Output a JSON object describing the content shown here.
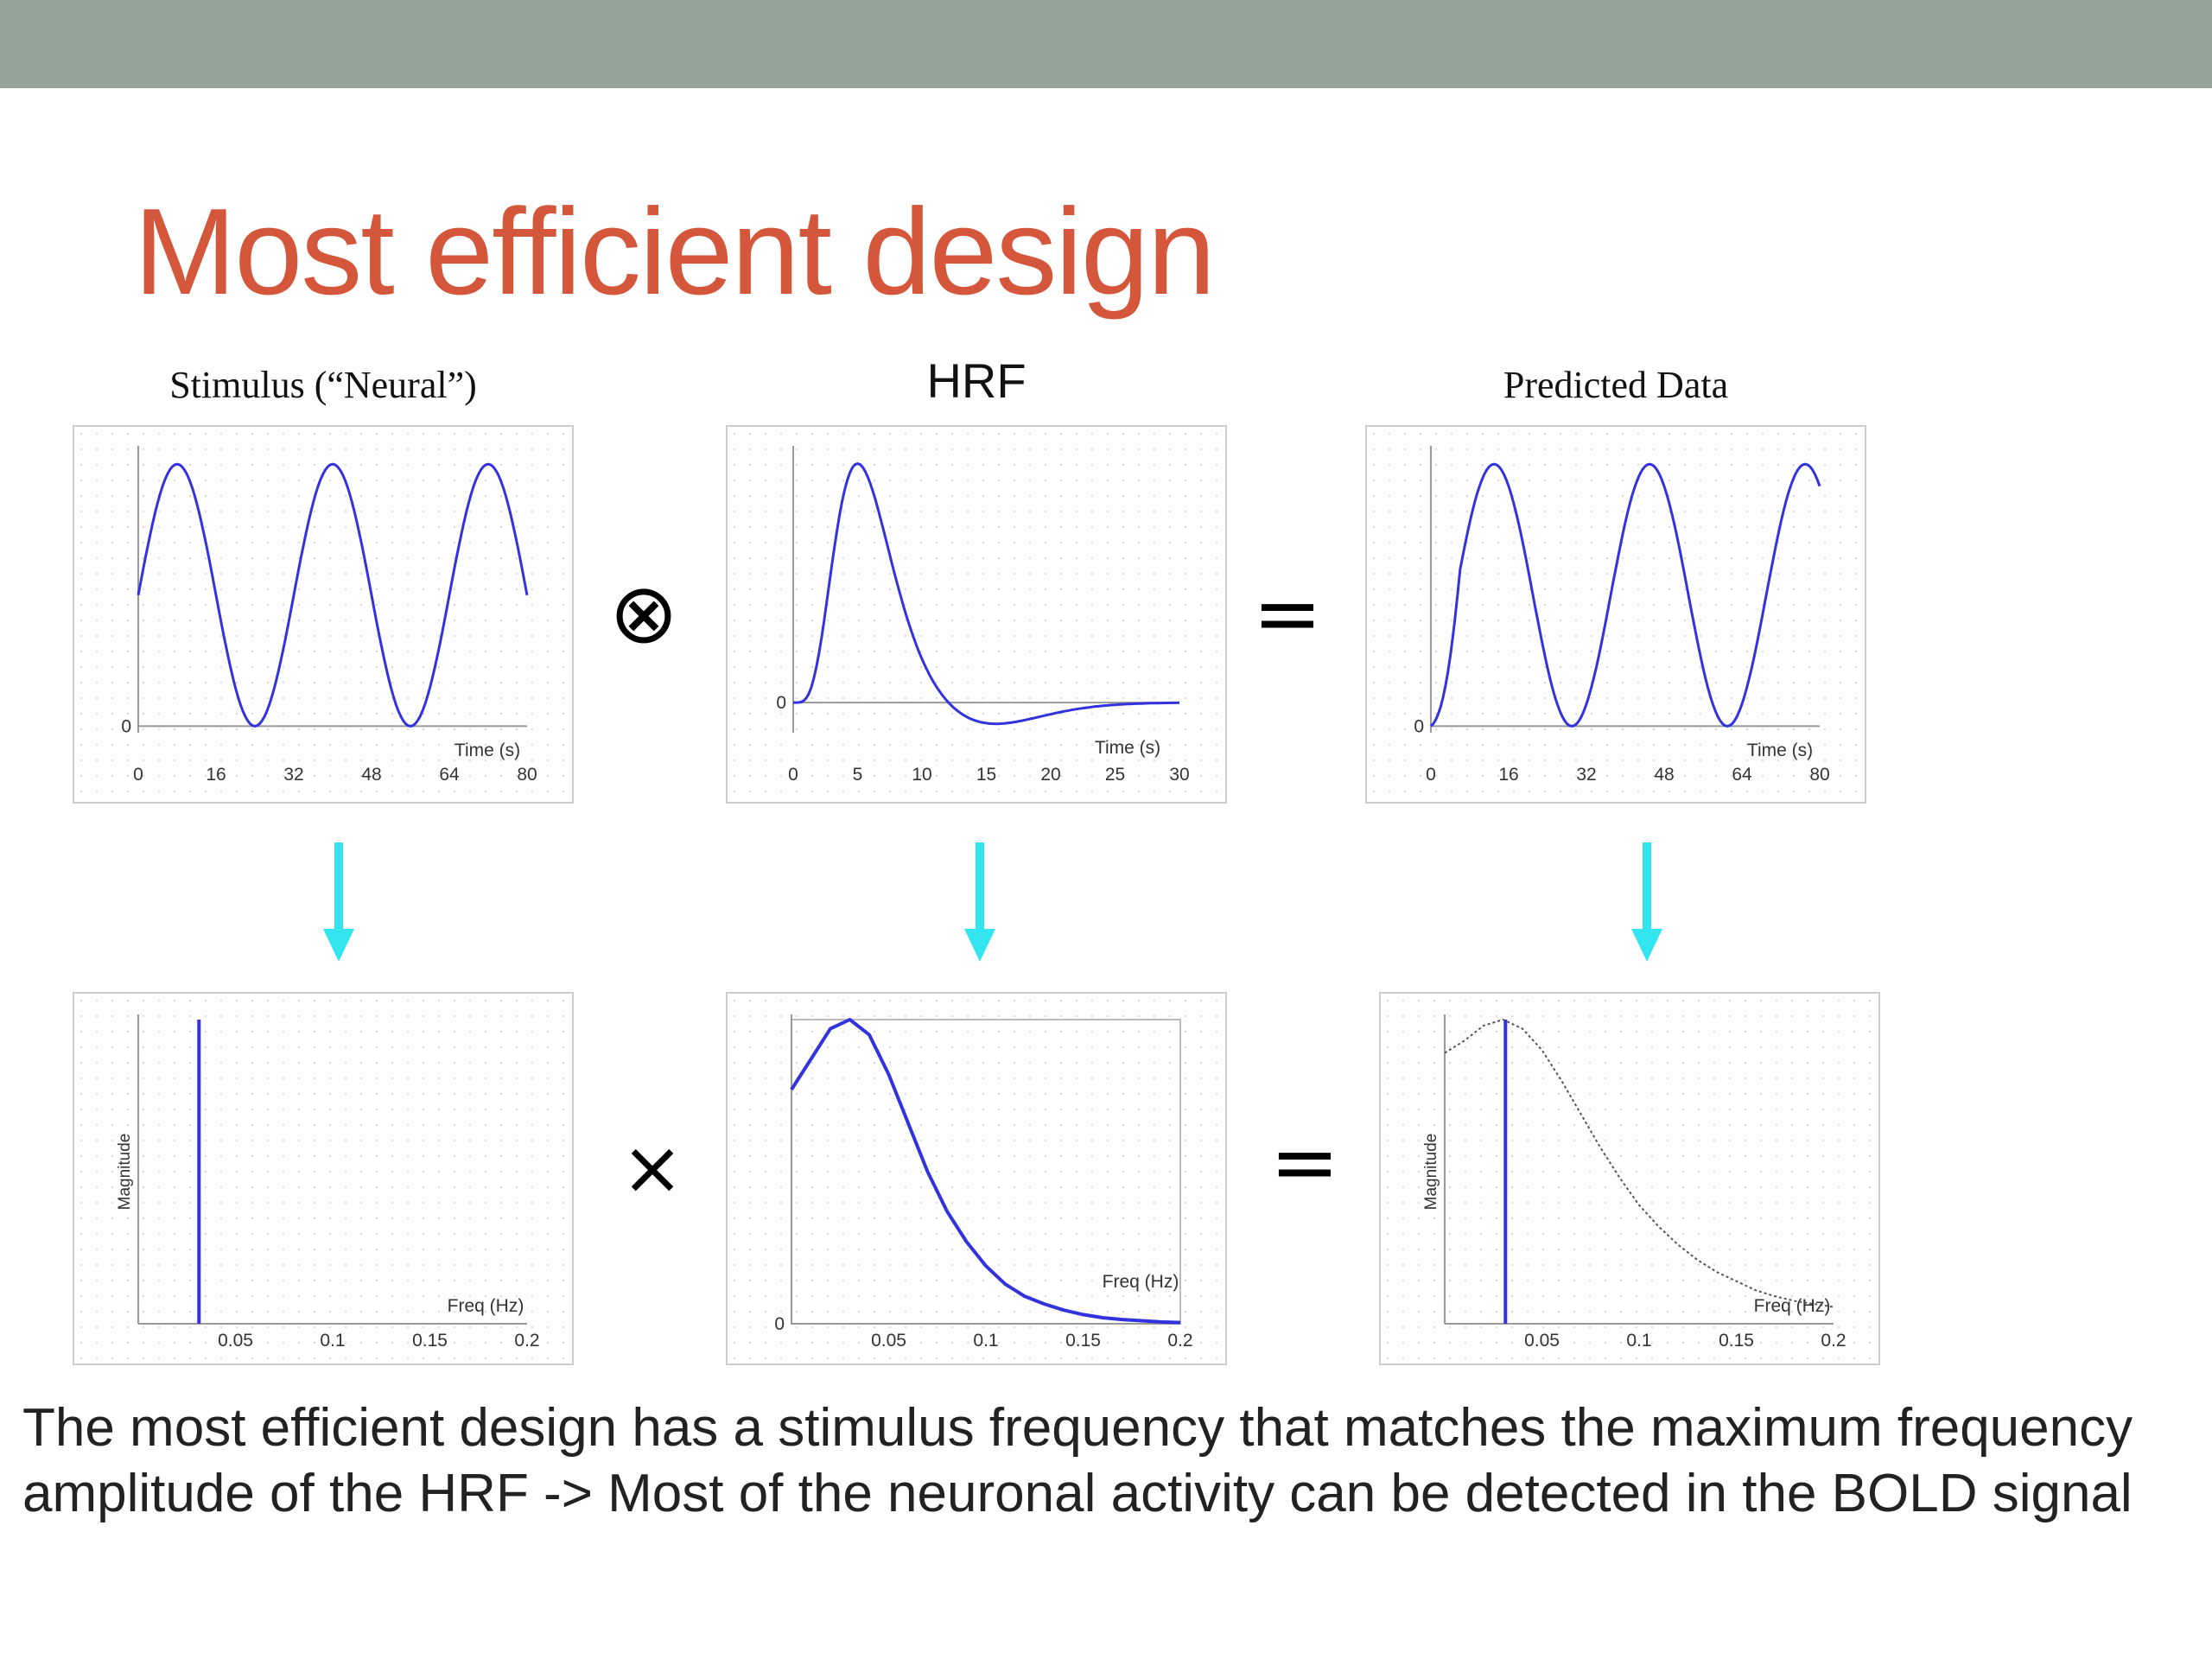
{
  "slide": {
    "title": "Most efficient design",
    "operators": {
      "convolve": "⊗",
      "equals": "=",
      "times": "×"
    },
    "column_titles": [
      "Stimulus (“Neural”)",
      "HRF",
      "Predicted Data"
    ],
    "body_lines": [
      "The most efficient design has a stimulus frequency that matches the maximum frequency",
      "amplitude of the HRF -> Most of the neuronal activity can be detected in the BOLD signal"
    ],
    "colors": {
      "accent": "#d5573b",
      "topbar": "#93a39a",
      "curve": "#3333dd",
      "arrow": "#33e5ee"
    }
  },
  "chart_data": [
    {
      "type": "line",
      "title": "Stimulus (“Neural”)",
      "xlabel": "Time (s)",
      "ylabel": "",
      "xticks": [
        "0",
        "16",
        "32",
        "48",
        "64",
        "80"
      ],
      "yticks": [
        "0"
      ],
      "xlim": [
        0,
        80
      ],
      "ylim": [
        -0.05,
        2.1
      ],
      "series": [
        {
          "function": "1 + sin(2*pi*t/32)",
          "x_range": [
            0,
            80
          ]
        }
      ]
    },
    {
      "type": "line",
      "title": "HRF",
      "xlabel": "Time (s)",
      "ylabel": "",
      "xticks": [
        "0",
        "5",
        "10",
        "15",
        "20",
        "25",
        "30"
      ],
      "yticks": [
        "0"
      ],
      "xlim": [
        0,
        30
      ],
      "ylim": [
        -0.12,
        1.0
      ],
      "peak_time": 5,
      "undershoot_time": 16,
      "series": [
        {
          "function": "double-gamma HRF",
          "x_range": [
            0,
            30
          ]
        }
      ]
    },
    {
      "type": "line",
      "title": "Predicted Data",
      "xlabel": "Time (s)",
      "ylabel": "",
      "xticks": [
        "0",
        "16",
        "32",
        "48",
        "64",
        "80"
      ],
      "yticks": [
        "0"
      ],
      "xlim": [
        0,
        80
      ],
      "ylim": [
        -0.05,
        2.1
      ],
      "series": [
        {
          "function": "1 + sin(2*pi*(t-5)/32)",
          "x_range": [
            0,
            80
          ]
        }
      ]
    },
    {
      "type": "line",
      "title": "",
      "xlabel": "Freq (Hz)",
      "ylabel": "Magnitude",
      "xticks": [
        "0.05",
        "0.1",
        "0.15",
        "0.2"
      ],
      "yticks": [],
      "xlim": [
        0,
        0.2
      ],
      "ylim": [
        0,
        1
      ],
      "series": [
        {
          "name": "",
          "x": [
            0.03125,
            0.03125
          ],
          "y": [
            0,
            1
          ]
        }
      ]
    },
    {
      "type": "line",
      "title": "",
      "xlabel": "Freq (Hz)",
      "ylabel": "",
      "xticks": [
        "0.05",
        "0.1",
        "0.15",
        "0.2"
      ],
      "yticks": [
        "0"
      ],
      "xlim": [
        0,
        0.2
      ],
      "ylim": [
        0,
        1
      ],
      "series": [
        {
          "name": "",
          "x": [
            0,
            0.01,
            0.02,
            0.03,
            0.04,
            0.05,
            0.06,
            0.07,
            0.08,
            0.09,
            0.1,
            0.11,
            0.12,
            0.13,
            0.14,
            0.15,
            0.16,
            0.17,
            0.18,
            0.19,
            0.2
          ],
          "y": [
            0.77,
            0.87,
            0.97,
            1.0,
            0.95,
            0.82,
            0.66,
            0.5,
            0.37,
            0.27,
            0.19,
            0.13,
            0.09,
            0.065,
            0.045,
            0.03,
            0.02,
            0.014,
            0.01,
            0.006,
            0.004
          ]
        }
      ]
    },
    {
      "type": "line",
      "title": "",
      "xlabel": "Freq (Hz)",
      "ylabel": "Magnitude",
      "xticks": [
        "0.05",
        "0.1",
        "0.15",
        "0.2"
      ],
      "yticks": [],
      "xlim": [
        0,
        0.2
      ],
      "ylim": [
        0,
        1
      ],
      "series": [
        {
          "name": "",
          "x": [
            0.03125,
            0.03125
          ],
          "y": [
            0,
            1
          ]
        },
        {
          "name": "",
          "style": "dotted",
          "x": [
            0,
            0.01,
            0.02,
            0.03,
            0.04,
            0.05,
            0.06,
            0.07,
            0.08,
            0.09,
            0.1,
            0.11,
            0.12,
            0.13,
            0.14,
            0.15,
            0.16,
            0.17,
            0.18,
            0.19,
            0.2
          ],
          "y": [
            0.89,
            0.93,
            0.98,
            1.0,
            0.97,
            0.9,
            0.8,
            0.69,
            0.58,
            0.48,
            0.39,
            0.32,
            0.26,
            0.21,
            0.17,
            0.14,
            0.11,
            0.09,
            0.075,
            0.065,
            0.055
          ]
        }
      ]
    }
  ]
}
